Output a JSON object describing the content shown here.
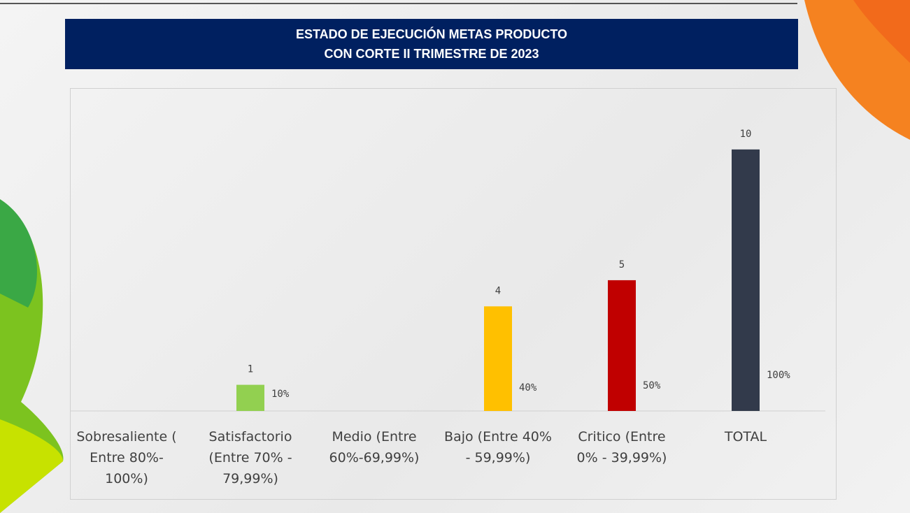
{
  "chart_data": {
    "type": "bar",
    "title": "ESTADO DE EJECUCIÓN METAS PRODUCTO\nCON CORTE II TRIMESTRE DE 2023",
    "categories": [
      "Sobresaliente (\nEntre 80%-\n100%)",
      "Satisfactorio\n(Entre 70% -\n79,99%)",
      "Medio (Entre\n60%-69,99%)",
      "Bajo (Entre 40%\n- 59,99%)",
      "Critico (Entre\n0% - 39,99%)",
      "TOTAL"
    ],
    "values": [
      null,
      1,
      null,
      4,
      5,
      10
    ],
    "colors": [
      null,
      "#92d050",
      null,
      "#ffc000",
      "#c00000",
      "#323a4b"
    ],
    "percent_labels": [
      null,
      "10%",
      null,
      "40%",
      "50%",
      "100%"
    ],
    "ylim": [
      0,
      12
    ]
  }
}
